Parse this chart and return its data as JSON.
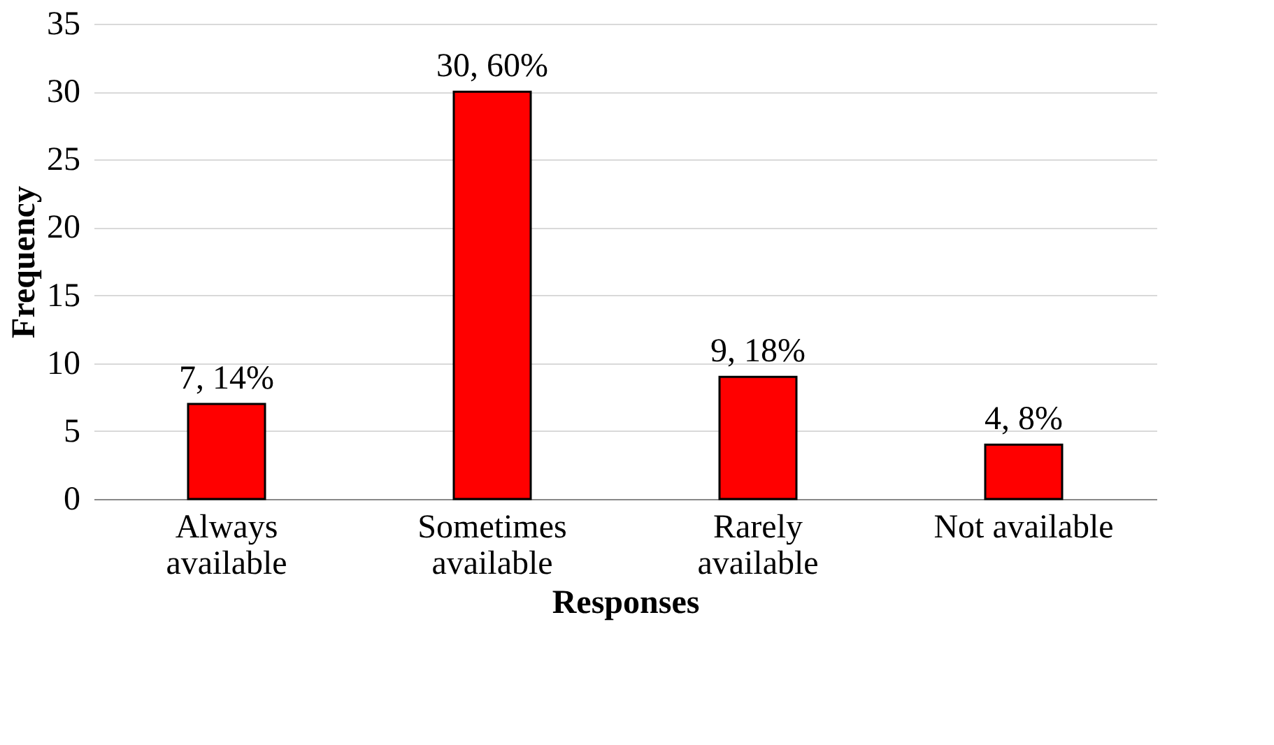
{
  "chart_data": {
    "type": "bar",
    "xlabel": "Responses",
    "ylabel": "Frequency",
    "categories": [
      "Always available",
      "Sometimes available",
      "Rarely available",
      "Not available"
    ],
    "values": [
      7,
      30,
      9,
      4
    ],
    "color": "#ff0000",
    "value_labels": [
      "7, 14%",
      "30, 60%",
      "9, 18%",
      "4, 8%"
    ],
    "ylim": [
      0,
      35
    ],
    "yticks": [
      0,
      5,
      10,
      15,
      20,
      25,
      30,
      35
    ],
    "grid": "y"
  }
}
